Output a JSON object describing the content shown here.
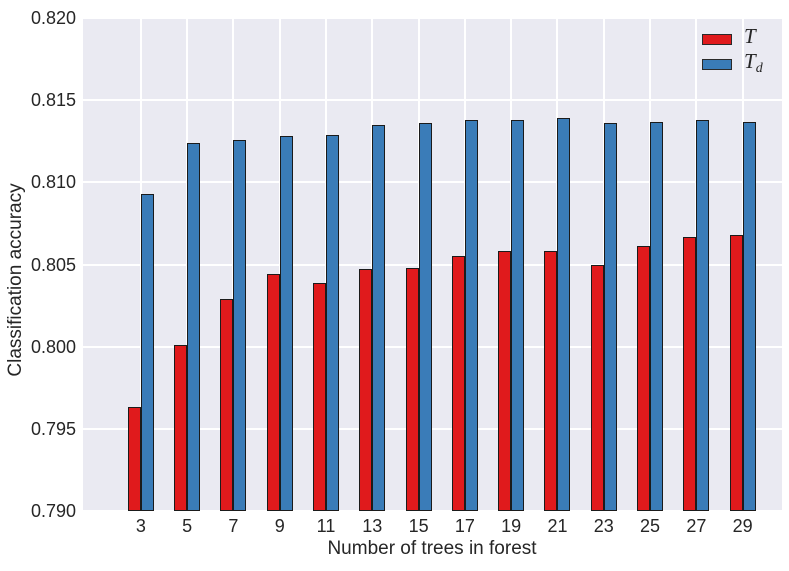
{
  "chart_data": {
    "type": "bar",
    "xlabel": "Number of trees in forest",
    "ylabel": "Classification accuracy",
    "categories": [
      3,
      5,
      7,
      9,
      11,
      13,
      15,
      17,
      19,
      21,
      23,
      25,
      27,
      29
    ],
    "series": [
      {
        "name": "T",
        "legend_symbol": "T",
        "legend_subscript": "",
        "color": "#e01a1c",
        "values": [
          0.7963,
          0.8001,
          0.8029,
          0.8044,
          0.8039,
          0.8047,
          0.8048,
          0.8055,
          0.8058,
          0.8058,
          0.805,
          0.8061,
          0.8067,
          0.8068
        ]
      },
      {
        "name": "Td",
        "legend_symbol": "T",
        "legend_subscript": "d",
        "color": "#3a7cb8",
        "values": [
          0.8093,
          0.8124,
          0.8126,
          0.8128,
          0.8129,
          0.8135,
          0.8136,
          0.8138,
          0.8138,
          0.8139,
          0.8136,
          0.8137,
          0.8138,
          0.8137
        ]
      }
    ],
    "ylim": [
      0.79,
      0.82
    ],
    "xlim": [
      0.5,
      30.7
    ],
    "yticks": [
      "0.790",
      "0.795",
      "0.800",
      "0.805",
      "0.810",
      "0.815",
      "0.820"
    ],
    "grid": true,
    "legend_position": "upper right",
    "plot_bg": "#eaeaf2",
    "grid_color": "#ffffff",
    "bar_edge_color": "#1b1b1b",
    "text_color": "#262626"
  }
}
